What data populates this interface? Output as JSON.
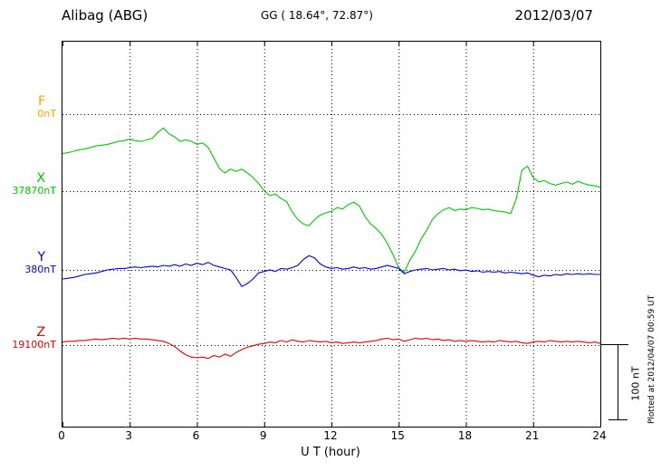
{
  "header": {
    "station": "Alibag (ABG)",
    "coords": "GG ( 18.64°,  72.87°)",
    "date": "2012/03/07"
  },
  "footer": {
    "plotted_at": "Plotted at 2012/04/07 00:59 UT"
  },
  "scale_bar": {
    "label": "100 nT",
    "nT": 100
  },
  "chart_data": {
    "type": "line",
    "title": "Alibag (ABG) magnetogram 2012/03/07",
    "xlabel": "U T (hour)",
    "x_range": [
      0,
      24
    ],
    "x_ticks": [
      0,
      3,
      6,
      9,
      12,
      15,
      18,
      21,
      24
    ],
    "grid": "dotted",
    "legend_position": "left",
    "x_start": 0,
    "x_step": 0.25,
    "series": [
      {
        "name": "F",
        "base_label": "0nT",
        "base_nT": 0,
        "color": "#FFA500",
        "baseline_frac": 0.188,
        "offsets_nT": []
      },
      {
        "name": "X",
        "base_label": "37870nT",
        "base_nT": 37870,
        "color": "#00C800",
        "baseline_frac": 0.388,
        "offsets_nT": [
          50,
          51,
          53,
          55,
          56,
          58,
          60,
          61,
          62,
          64,
          66,
          67,
          69,
          67,
          66,
          68,
          70,
          78,
          84,
          76,
          72,
          66,
          68,
          66,
          62,
          64,
          58,
          44,
          30,
          24,
          29,
          26,
          29,
          24,
          18,
          10,
          0,
          -6,
          -4,
          -10,
          -14,
          -28,
          -38,
          -44,
          -46,
          -38,
          -32,
          -29,
          -27,
          -22,
          -24,
          -18,
          -15,
          -20,
          -34,
          -44,
          -50,
          -58,
          -70,
          -85,
          -102,
          -108,
          -92,
          -80,
          -64,
          -52,
          -38,
          -30,
          -25,
          -22,
          -26,
          -24,
          -25,
          -22,
          -23,
          -25,
          -24,
          -26,
          -27,
          -28,
          -30,
          -10,
          28,
          33,
          18,
          12,
          14,
          10,
          8,
          10,
          12,
          9,
          13,
          10,
          8,
          7,
          5
        ]
      },
      {
        "name": "Y",
        "base_label": "380nT",
        "base_nT": 380,
        "color": "#0000E0",
        "baseline_frac": 0.593,
        "offsets_nT": [
          -12,
          -11,
          -10,
          -8,
          -6,
          -5,
          -4,
          -2,
          0,
          1,
          2,
          2,
          3,
          4,
          3,
          4,
          5,
          4,
          6,
          5,
          7,
          5,
          8,
          6,
          9,
          7,
          10,
          6,
          4,
          2,
          0,
          -10,
          -22,
          -18,
          -12,
          -4,
          -2,
          0,
          -2,
          2,
          1,
          3,
          6,
          14,
          19,
          16,
          8,
          4,
          2,
          3,
          1,
          2,
          4,
          2,
          3,
          1,
          2,
          4,
          6,
          4,
          2,
          -5,
          -2,
          0,
          1,
          2,
          0,
          1,
          2,
          0,
          1,
          -1,
          0,
          -2,
          -1,
          -3,
          -2,
          -3,
          -2,
          -4,
          -3,
          -4,
          -5,
          -4,
          -7,
          -9,
          -7,
          -8,
          -6,
          -7,
          -5,
          -6,
          -5,
          -6,
          -5,
          -6,
          -6
        ]
      },
      {
        "name": "Z",
        "base_label": "19100nT",
        "base_nT": 19100,
        "color": "#E00000",
        "baseline_frac": 0.788,
        "offsets_nT": [
          4,
          5,
          5,
          6,
          6,
          7,
          8,
          7,
          8,
          9,
          8,
          9,
          8,
          9,
          8,
          8,
          7,
          6,
          5,
          2,
          -2,
          -8,
          -13,
          -16,
          -17,
          -16,
          -18,
          -14,
          -16,
          -12,
          -15,
          -10,
          -6,
          -3,
          -1,
          1,
          2,
          4,
          3,
          6,
          4,
          7,
          5,
          4,
          6,
          5,
          4,
          5,
          3,
          4,
          2,
          3,
          4,
          3,
          4,
          5,
          6,
          8,
          9,
          7,
          8,
          5,
          7,
          9,
          8,
          9,
          7,
          8,
          6,
          7,
          5,
          6,
          5,
          6,
          5,
          4,
          5,
          4,
          6,
          5,
          4,
          5,
          3,
          2,
          4,
          5,
          4,
          6,
          5,
          4,
          5,
          4,
          5,
          4,
          3,
          4,
          2
        ]
      }
    ]
  }
}
